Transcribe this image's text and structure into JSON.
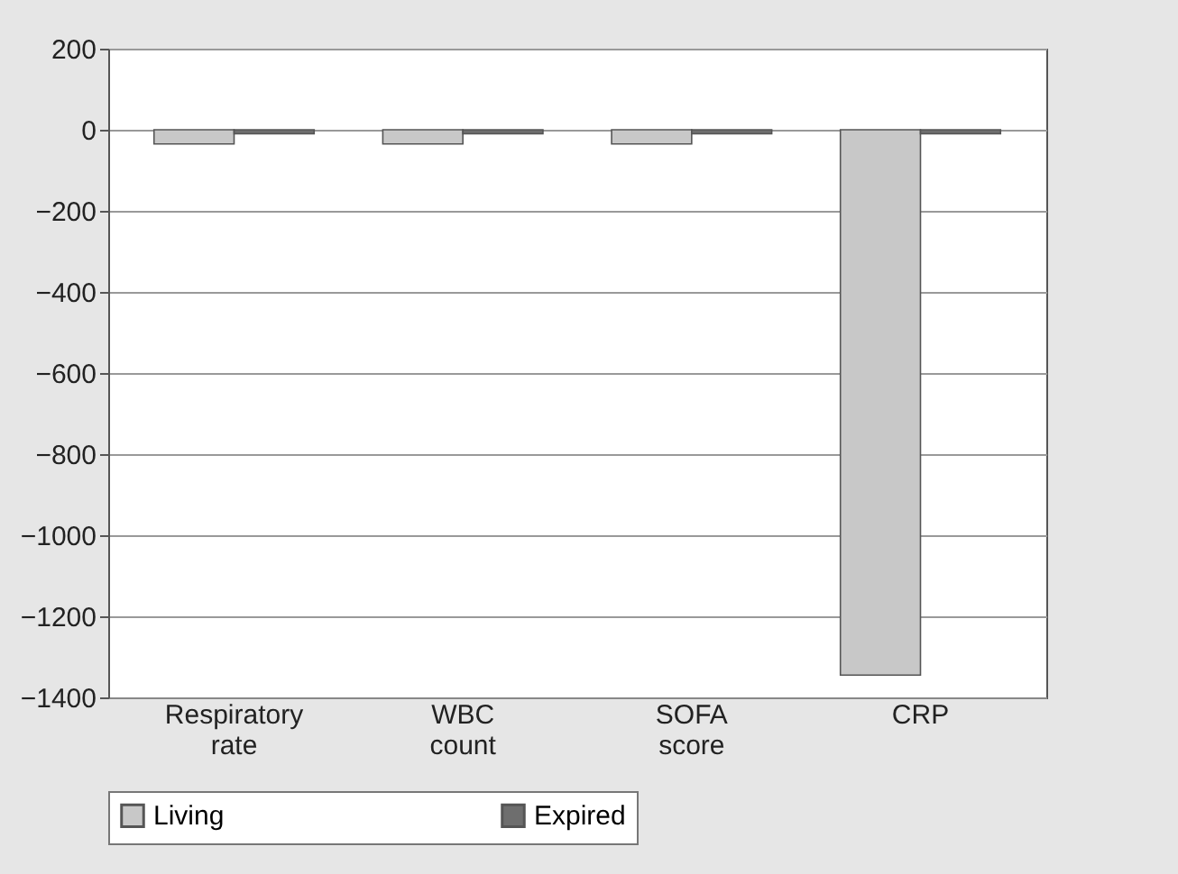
{
  "chart_data": {
    "type": "bar",
    "categories": [
      "Respiratory rate",
      "WBC count",
      "SOFA score",
      "CRP"
    ],
    "series": [
      {
        "name": "Living",
        "color": "#c8c8c8",
        "values": [
          -35,
          -35,
          -35,
          -1345
        ]
      },
      {
        "name": "Expired",
        "color": "#6e6e6e",
        "values": [
          -10,
          -10,
          -10,
          -10
        ]
      }
    ],
    "ylim": [
      -1400,
      200
    ],
    "yticks": [
      -1400,
      -1200,
      -1000,
      -800,
      -600,
      -400,
      -200,
      0,
      200
    ],
    "grid": "y",
    "legend": "bottom"
  }
}
